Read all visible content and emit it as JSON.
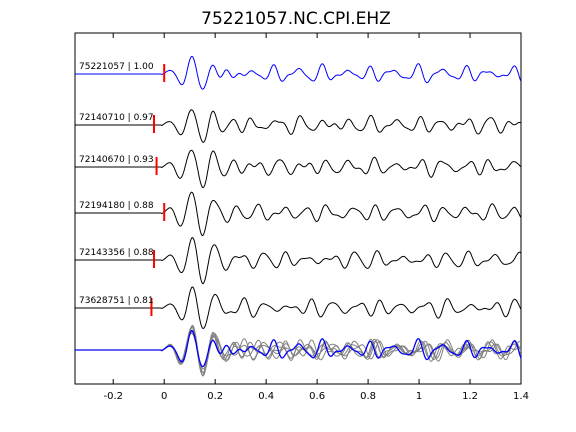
{
  "chart_data": {
    "type": "line",
    "title": "75221057.NC.CPI.EHZ",
    "xlabel": "",
    "ylabel": "",
    "xlim": [
      -0.35,
      1.4
    ],
    "xticks": [
      -0.2,
      0,
      0.2,
      0.4,
      0.6,
      0.8,
      1,
      1.2,
      1.4
    ],
    "xtick_labels": [
      "-0.2",
      "0",
      "0.2",
      "0.4",
      "0.6",
      "0.8",
      "1",
      "1.2",
      "1.4"
    ],
    "grid": false,
    "legend": "none",
    "traces": [
      {
        "label": "75221057 | 1.00",
        "color": "#0000ff",
        "pick_time": 0.0,
        "seed": 1
      },
      {
        "label": "72140710 | 0.97",
        "color": "#000000",
        "pick_time": -0.04,
        "seed": 2
      },
      {
        "label": "72140670 | 0.93",
        "color": "#000000",
        "pick_time": -0.03,
        "seed": 3
      },
      {
        "label": "72194180 | 0.88",
        "color": "#000000",
        "pick_time": 0.0,
        "seed": 4
      },
      {
        "label": "72143356 | 0.88",
        "color": "#000000",
        "pick_time": -0.04,
        "seed": 5
      },
      {
        "label": "73628751 | 0.81",
        "color": "#000000",
        "pick_time": -0.05,
        "seed": 6
      }
    ],
    "stack": {
      "primary_color": "#0000ff",
      "overlay_color": "#808080"
    },
    "pick_color": "#ff0000"
  }
}
